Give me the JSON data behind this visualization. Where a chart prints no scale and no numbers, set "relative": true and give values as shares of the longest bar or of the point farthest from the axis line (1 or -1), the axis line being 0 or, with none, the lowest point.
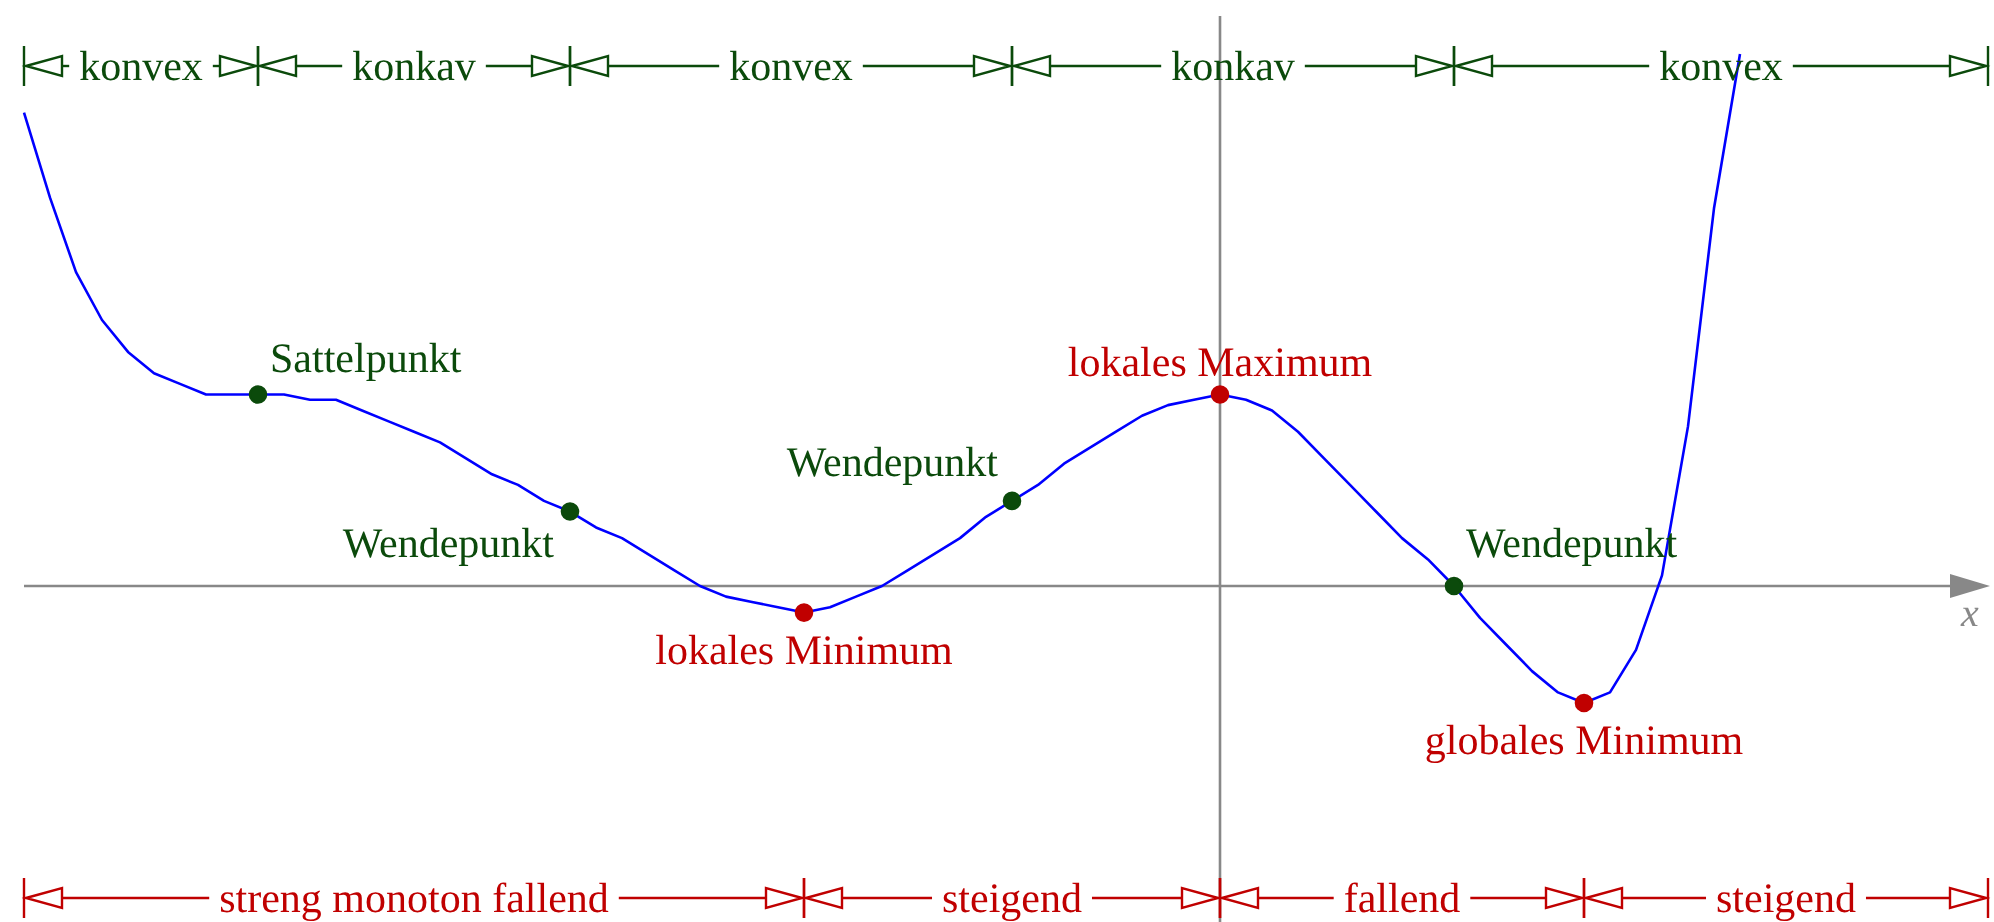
{
  "chart_data": {
    "type": "line",
    "relative": true,
    "legend": false,
    "tick_labels": false,
    "categories": [
      null,
      null,
      null,
      null,
      null,
      null,
      null,
      null,
      null,
      null,
      null,
      null,
      null,
      null,
      null,
      null,
      null,
      null,
      null,
      null,
      null,
      null,
      null,
      null,
      null,
      null,
      null,
      null,
      null,
      null,
      null,
      null,
      null,
      null,
      null,
      null,
      null,
      null,
      null,
      null,
      null,
      null,
      null,
      null,
      null,
      null,
      null,
      null,
      null,
      null,
      null,
      null,
      null,
      null,
      null,
      null,
      null,
      null,
      null,
      null,
      null,
      null,
      null,
      null,
      null,
      null,
      null
    ],
    "series": [
      {
        "color": "#0000ff",
        "colors": [
          null,
          null,
          null,
          null,
          null,
          null,
          null,
          null,
          null,
          "#0b4a0b",
          null,
          null,
          null,
          null,
          null,
          null,
          null,
          null,
          null,
          null,
          null,
          "#0b4a0b",
          null,
          null,
          null,
          null,
          null,
          null,
          null,
          null,
          "#c00000",
          null,
          null,
          null,
          null,
          null,
          null,
          null,
          "#0b4a0b",
          null,
          null,
          null,
          null,
          null,
          null,
          null,
          "#c00000",
          null,
          null,
          null,
          null,
          null,
          null,
          null,
          null,
          "#0b4a0b",
          null,
          null,
          null,
          null,
          "#c00000",
          null,
          null,
          null,
          null,
          null,
          null
        ],
        "values": [
          0.89,
          0.73,
          0.59,
          0.5,
          0.44,
          0.4,
          0.38,
          0.36,
          0.36,
          0.36,
          0.36,
          0.35,
          0.35,
          0.33,
          0.31,
          0.29,
          0.27,
          0.24,
          0.21,
          0.19,
          0.16,
          0.14,
          0.11,
          0.09,
          0.06,
          0.03,
          0.0,
          -0.02,
          -0.03,
          -0.04,
          -0.05,
          -0.04,
          -0.02,
          0.0,
          0.03,
          0.06,
          0.09,
          0.13,
          0.16,
          0.19,
          0.23,
          0.26,
          0.29,
          0.32,
          0.34,
          0.35,
          0.36,
          0.35,
          0.33,
          0.29,
          0.24,
          0.19,
          0.14,
          0.09,
          0.05,
          0.0,
          -0.06,
          -0.11,
          -0.16,
          -0.2,
          -0.22,
          -0.2,
          -0.12,
          0.02,
          0.3,
          0.71,
          1
        ]
      }
    ],
    "annotations": [
      "Sattelpunkt",
      "Wendepunkt",
      "Wendepunkt",
      "Wendepunkt",
      "lokales Minimum",
      "lokales Maximum",
      "globales Minimum",
      "konvex",
      "konkav",
      "konvex",
      "konkav",
      "konvex",
      "streng monoton fallend",
      "steigend",
      "fallend",
      "steigend",
      "x"
    ]
  }
}
